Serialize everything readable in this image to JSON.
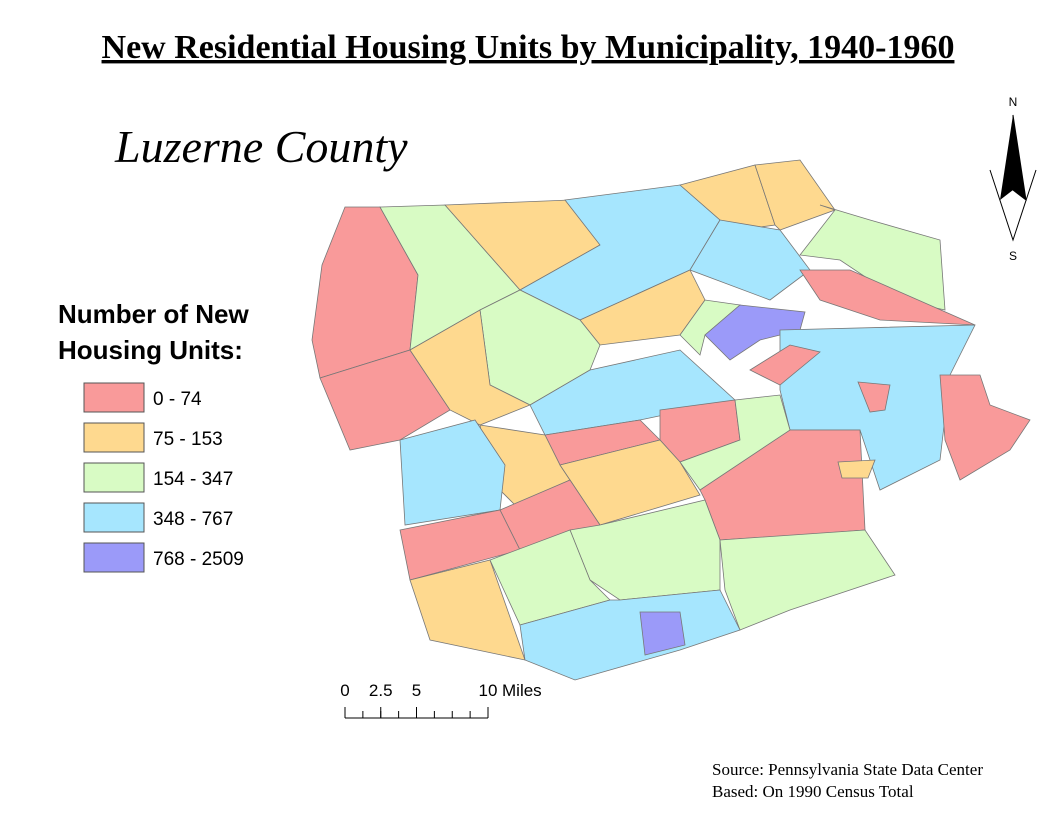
{
  "header": {
    "title": "New Residential Housing Units by Municipality, 1940-1960",
    "subtitle": "Luzerne County"
  },
  "legend": {
    "title_lines": [
      "Number of New",
      "Housing Units:"
    ],
    "items": [
      {
        "label": "0 - 74",
        "color": "#f99a9a"
      },
      {
        "label": "75 - 153",
        "color": "#fed98f"
      },
      {
        "label": "154 - 347",
        "color": "#d8fbc4"
      },
      {
        "label": "348 - 767",
        "color": "#a6e6fe"
      },
      {
        "label": "768 - 2509",
        "color": "#9b9af9"
      }
    ]
  },
  "scale_bar": {
    "ticks": [
      0,
      2.5,
      5,
      10
    ],
    "unit": "Miles"
  },
  "north_arrow": {
    "north": "N",
    "south": "S"
  },
  "source": [
    "Source: Pennsylvania State Data Center",
    "Based: On 1990 Census Total"
  ]
}
